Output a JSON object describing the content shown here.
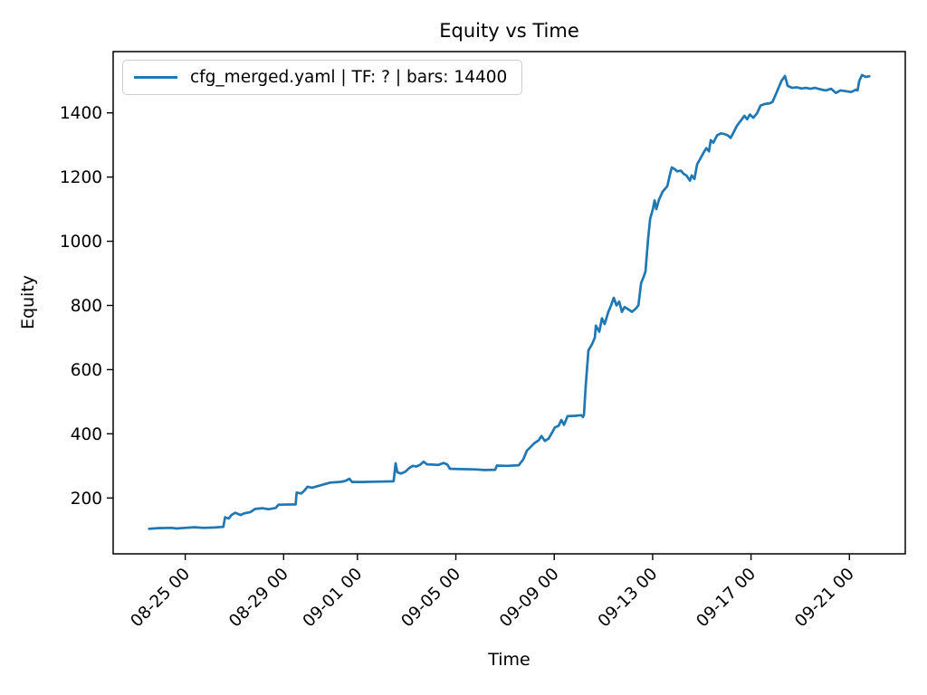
{
  "chart_data": {
    "type": "line",
    "title": "Equity vs Time",
    "xlabel": "Time",
    "ylabel": "Equity",
    "legend_position": "upper left",
    "background": "#ffffff",
    "axis_color": "#000000",
    "x_units": "days since 08-25 00:00",
    "xlim": [
      -2.93,
      29.27
    ],
    "ylim": [
      26,
      1591
    ],
    "x_ticks": [
      {
        "pos": 0,
        "label": "08-25 00"
      },
      {
        "pos": 4,
        "label": "08-29 00"
      },
      {
        "pos": 7,
        "label": "09-01 00"
      },
      {
        "pos": 11,
        "label": "09-05 00"
      },
      {
        "pos": 15,
        "label": "09-09 00"
      },
      {
        "pos": 19,
        "label": "09-13 00"
      },
      {
        "pos": 23,
        "label": "09-17 00"
      },
      {
        "pos": 27,
        "label": "09-21 00"
      }
    ],
    "y_ticks": [
      200,
      400,
      600,
      800,
      1000,
      1200,
      1400
    ],
    "series": [
      {
        "name": "cfg_merged.yaml | TF: ? | bars: 14400",
        "color": "#1f77b4",
        "line_width": 2.7,
        "points": [
          [
            -1.47,
            104
          ],
          [
            -1.1,
            106
          ],
          [
            -0.55,
            107
          ],
          [
            -0.37,
            105
          ],
          [
            0.0,
            107
          ],
          [
            0.37,
            109
          ],
          [
            0.74,
            107
          ],
          [
            1.2,
            108
          ],
          [
            1.55,
            110
          ],
          [
            1.62,
            140
          ],
          [
            1.77,
            136
          ],
          [
            1.88,
            147
          ],
          [
            2.03,
            154
          ],
          [
            2.25,
            147
          ],
          [
            2.39,
            152
          ],
          [
            2.65,
            156
          ],
          [
            2.84,
            166
          ],
          [
            3.13,
            168
          ],
          [
            3.39,
            165
          ],
          [
            3.68,
            169
          ],
          [
            3.79,
            179
          ],
          [
            4.49,
            180
          ],
          [
            4.53,
            217
          ],
          [
            4.71,
            214
          ],
          [
            4.83,
            222
          ],
          [
            4.97,
            235
          ],
          [
            5.16,
            232
          ],
          [
            5.53,
            240
          ],
          [
            5.89,
            248
          ],
          [
            6.26,
            250
          ],
          [
            6.45,
            252
          ],
          [
            6.56,
            255
          ],
          [
            6.67,
            260
          ],
          [
            6.78,
            250
          ],
          [
            7.18,
            250
          ],
          [
            7.92,
            251
          ],
          [
            8.47,
            252
          ],
          [
            8.55,
            308
          ],
          [
            8.62,
            280
          ],
          [
            8.77,
            276
          ],
          [
            8.95,
            282
          ],
          [
            9.1,
            293
          ],
          [
            9.25,
            300
          ],
          [
            9.39,
            298
          ],
          [
            9.54,
            303
          ],
          [
            9.69,
            313
          ],
          [
            9.83,
            305
          ],
          [
            10.06,
            304
          ],
          [
            10.28,
            303
          ],
          [
            10.5,
            309
          ],
          [
            10.65,
            305
          ],
          [
            10.76,
            291
          ],
          [
            11.23,
            290
          ],
          [
            11.79,
            289
          ],
          [
            12.16,
            287
          ],
          [
            12.6,
            288
          ],
          [
            12.67,
            301
          ],
          [
            13.08,
            300
          ],
          [
            13.56,
            302
          ],
          [
            13.74,
            320
          ],
          [
            13.89,
            348
          ],
          [
            14.0,
            356
          ],
          [
            14.18,
            370
          ],
          [
            14.37,
            380
          ],
          [
            14.48,
            393
          ],
          [
            14.62,
            378
          ],
          [
            14.77,
            385
          ],
          [
            14.92,
            405
          ],
          [
            15.03,
            420
          ],
          [
            15.18,
            425
          ],
          [
            15.29,
            443
          ],
          [
            15.4,
            428
          ],
          [
            15.54,
            455
          ],
          [
            15.84,
            456
          ],
          [
            16.1,
            458
          ],
          [
            16.17,
            452
          ],
          [
            16.21,
            460
          ],
          [
            16.28,
            550
          ],
          [
            16.39,
            660
          ],
          [
            16.54,
            680
          ],
          [
            16.65,
            700
          ],
          [
            16.69,
            737
          ],
          [
            16.83,
            718
          ],
          [
            16.94,
            760
          ],
          [
            17.05,
            742
          ],
          [
            17.2,
            780
          ],
          [
            17.31,
            800
          ],
          [
            17.42,
            824
          ],
          [
            17.53,
            800
          ],
          [
            17.64,
            812
          ],
          [
            17.75,
            780
          ],
          [
            17.86,
            795
          ],
          [
            18.01,
            788
          ],
          [
            18.16,
            780
          ],
          [
            18.31,
            790
          ],
          [
            18.42,
            800
          ],
          [
            18.53,
            870
          ],
          [
            18.64,
            890
          ],
          [
            18.71,
            905
          ],
          [
            18.82,
            1010
          ],
          [
            18.9,
            1070
          ],
          [
            19.01,
            1100
          ],
          [
            19.08,
            1127
          ],
          [
            19.15,
            1100
          ],
          [
            19.26,
            1130
          ],
          [
            19.41,
            1155
          ],
          [
            19.6,
            1172
          ],
          [
            19.71,
            1210
          ],
          [
            19.78,
            1230
          ],
          [
            19.89,
            1225
          ],
          [
            20.0,
            1218
          ],
          [
            20.15,
            1220
          ],
          [
            20.26,
            1210
          ],
          [
            20.37,
            1205
          ],
          [
            20.52,
            1189
          ],
          [
            20.59,
            1205
          ],
          [
            20.7,
            1194
          ],
          [
            20.81,
            1240
          ],
          [
            20.92,
            1255
          ],
          [
            21.07,
            1276
          ],
          [
            21.18,
            1290
          ],
          [
            21.29,
            1280
          ],
          [
            21.36,
            1315
          ],
          [
            21.47,
            1307
          ],
          [
            21.62,
            1330
          ],
          [
            21.77,
            1336
          ],
          [
            21.92,
            1334
          ],
          [
            22.06,
            1330
          ],
          [
            22.17,
            1322
          ],
          [
            22.28,
            1338
          ],
          [
            22.43,
            1360
          ],
          [
            22.58,
            1375
          ],
          [
            22.73,
            1391
          ],
          [
            22.84,
            1380
          ],
          [
            22.95,
            1395
          ],
          [
            23.09,
            1385
          ],
          [
            23.24,
            1398
          ],
          [
            23.39,
            1423
          ],
          [
            23.57,
            1428
          ],
          [
            23.76,
            1430
          ],
          [
            23.87,
            1434
          ],
          [
            24.02,
            1460
          ],
          [
            24.13,
            1480
          ],
          [
            24.24,
            1500
          ],
          [
            24.38,
            1515
          ],
          [
            24.49,
            1484
          ],
          [
            24.68,
            1478
          ],
          [
            24.86,
            1480
          ],
          [
            25.05,
            1476
          ],
          [
            25.23,
            1478
          ],
          [
            25.41,
            1475
          ],
          [
            25.6,
            1478
          ],
          [
            25.78,
            1474
          ],
          [
            26.04,
            1470
          ],
          [
            26.26,
            1475
          ],
          [
            26.45,
            1462
          ],
          [
            26.63,
            1470
          ],
          [
            26.81,
            1468
          ],
          [
            27.07,
            1465
          ],
          [
            27.26,
            1472
          ],
          [
            27.33,
            1470
          ],
          [
            27.4,
            1500
          ],
          [
            27.51,
            1518
          ],
          [
            27.66,
            1512
          ],
          [
            27.81,
            1514
          ]
        ]
      }
    ]
  }
}
